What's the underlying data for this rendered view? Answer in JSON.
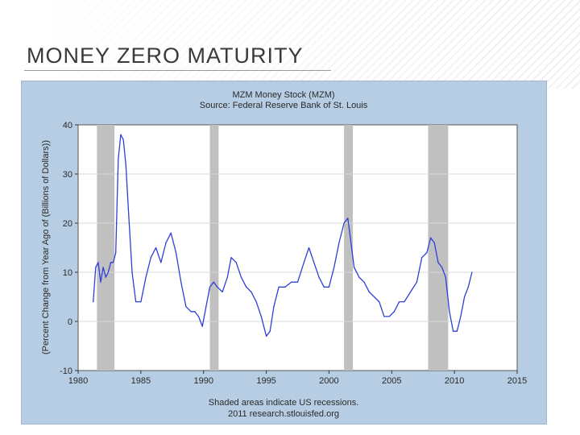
{
  "slide": {
    "title": "MONEY ZERO MATURITY"
  },
  "chart_data": {
    "type": "line",
    "title": "MZM Money Stock (MZM)",
    "subtitle": "Source: Federal Reserve Bank of St. Louis",
    "ylabel": "(Percent Change from Year Ago of (Billions of Dollars))",
    "xlabel": "",
    "footer": [
      "Shaded areas indicate US recessions.",
      "2011 research.stlouisfed.org"
    ],
    "xlim": [
      1980,
      2015
    ],
    "ylim": [
      -10,
      40
    ],
    "x_ticks": [
      "1980",
      "1985",
      "1990",
      "1995",
      "2000",
      "2005",
      "2010",
      "2015"
    ],
    "y_ticks": [
      "-10",
      "0",
      "10",
      "20",
      "30",
      "40"
    ],
    "grid": true,
    "recessions": [
      [
        1981.5,
        1982.9
      ],
      [
        1990.5,
        1991.2
      ],
      [
        2001.2,
        2001.9
      ],
      [
        2007.9,
        2009.5
      ]
    ],
    "colors": {
      "line": "#2f3fd8",
      "recession": "#c0c0c0",
      "panel": "#b6cde3",
      "plot_bg": "#ffffff",
      "grid": "#d8d8d8"
    },
    "series": [
      {
        "name": "MZM",
        "x": [
          1981.2,
          1981.4,
          1981.6,
          1981.8,
          1982.0,
          1982.2,
          1982.4,
          1982.6,
          1982.8,
          1983.0,
          1983.2,
          1983.4,
          1983.6,
          1983.8,
          1984.0,
          1984.3,
          1984.6,
          1985.0,
          1985.4,
          1985.8,
          1986.2,
          1986.6,
          1987.0,
          1987.4,
          1987.8,
          1988.2,
          1988.6,
          1989.0,
          1989.3,
          1989.6,
          1989.9,
          1990.2,
          1990.5,
          1990.8,
          1991.1,
          1991.5,
          1991.9,
          1992.2,
          1992.6,
          1993.0,
          1993.4,
          1993.8,
          1994.2,
          1994.6,
          1995.0,
          1995.3,
          1995.6,
          1996.0,
          1996.5,
          1997.0,
          1997.5,
          1998.0,
          1998.4,
          1998.8,
          1999.2,
          1999.6,
          2000.0,
          2000.4,
          2000.8,
          2001.2,
          2001.5,
          2001.8,
          2002.0,
          2002.4,
          2002.8,
          2003.2,
          2003.6,
          2004.0,
          2004.4,
          2004.8,
          2005.2,
          2005.6,
          2006.0,
          2006.5,
          2007.0,
          2007.4,
          2007.8,
          2008.1,
          2008.4,
          2008.7,
          2009.0,
          2009.3,
          2009.6,
          2009.9,
          2010.2,
          2010.5,
          2010.8,
          2011.1,
          2011.4
        ],
        "values": [
          4,
          11,
          12,
          8,
          11,
          9,
          10,
          12,
          12,
          14,
          33,
          38,
          37,
          32,
          23,
          10,
          4,
          4,
          9,
          13,
          15,
          12,
          16,
          18,
          14,
          8,
          3,
          2,
          2,
          1,
          -1,
          3,
          7,
          8,
          7,
          6,
          9,
          13,
          12,
          9,
          7,
          6,
          4,
          1,
          -3,
          -2,
          3,
          7,
          7,
          8,
          8,
          12,
          15,
          12,
          9,
          7,
          7,
          11,
          16,
          20,
          21,
          15,
          11,
          9,
          8,
          6,
          5,
          4,
          1,
          1,
          2,
          4,
          4,
          6,
          8,
          13,
          14,
          17,
          16,
          12,
          11,
          9,
          2,
          -2,
          -2,
          1,
          5,
          7,
          10
        ]
      }
    ]
  }
}
